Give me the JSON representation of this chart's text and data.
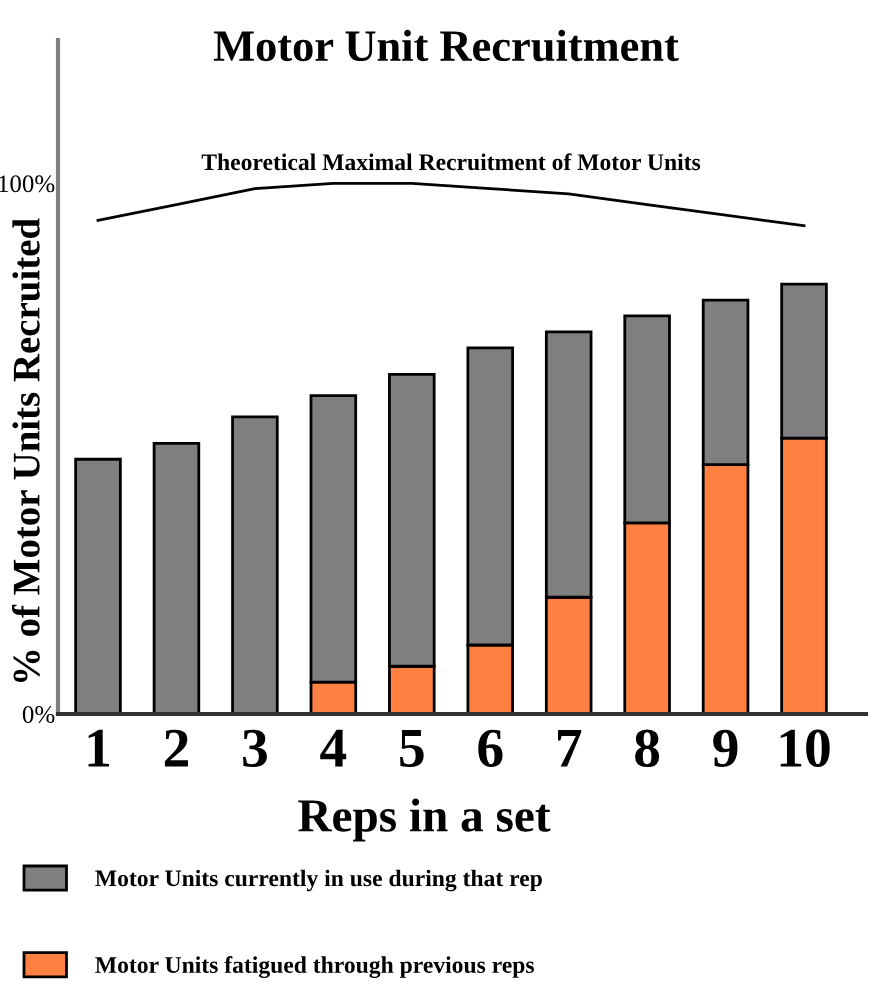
{
  "chart_data": {
    "type": "bar",
    "title": "Motor Unit Recruitment",
    "xlabel": "Reps in a set",
    "ylabel": "% of Motor Units Recruited",
    "categories": [
      "1",
      "2",
      "3",
      "4",
      "5",
      "6",
      "7",
      "8",
      "9",
      "10"
    ],
    "stacked": true,
    "series": [
      {
        "name": "Motor Units fatigued through previous reps",
        "color": "#ff8040",
        "values": [
          0,
          0,
          0,
          6,
          9,
          13,
          22,
          36,
          47,
          52
        ]
      },
      {
        "name": "Motor Units currently in use during that rep",
        "color": "#7f7f7f",
        "values": [
          48,
          51,
          56,
          54,
          55,
          56,
          50,
          39,
          31,
          29
        ]
      },
      {
        "name": "Theoretical Maximal Recruitment of Motor Units",
        "type": "line",
        "color": "#000000",
        "values": [
          93,
          96,
          99,
          100,
          100,
          99,
          98,
          96,
          94,
          92
        ]
      }
    ],
    "ylim": [
      0,
      127
    ],
    "yticks": [
      {
        "value": 0,
        "label": "0%"
      },
      {
        "value": 100,
        "label": "100%"
      }
    ],
    "legend": "bottom",
    "grid": false
  }
}
